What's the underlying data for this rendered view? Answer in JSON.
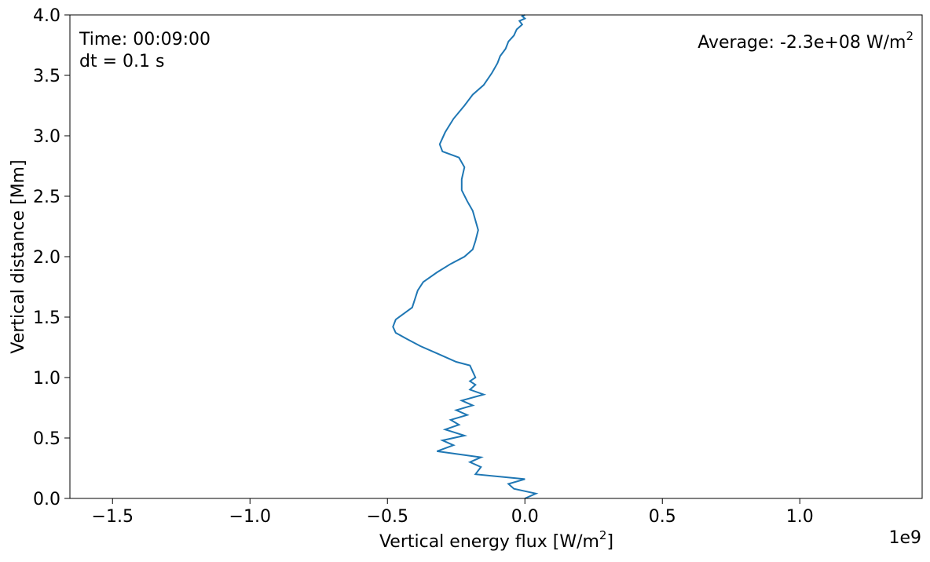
{
  "chart_data": {
    "type": "line",
    "title": "",
    "xlabel": "Vertical energy flux [W/m",
    "xlabel_sup": "2",
    "xlabel_tail": "]",
    "ylabel": "Vertical distance [Mm]",
    "x_offset_label": "1e9",
    "x_scale": 1000000000,
    "xlim": [
      -1655000000.0,
      1445000000.0
    ],
    "ylim": [
      0.0,
      4.0
    ],
    "grid": false,
    "legend": "none",
    "x_ticks": [
      -1500000000.0,
      -1000000000.0,
      -500000000.0,
      0.0,
      500000000.0,
      1000000000.0
    ],
    "x_tick_labels": [
      "−1.5",
      "−1.0",
      "−0.5",
      "0.0",
      "0.5",
      "1.0"
    ],
    "y_ticks": [
      0.0,
      0.5,
      1.0,
      1.5,
      2.0,
      2.5,
      3.0,
      3.5,
      4.0
    ],
    "y_tick_labels": [
      "0.0",
      "0.5",
      "1.0",
      "1.5",
      "2.0",
      "2.5",
      "3.0",
      "3.5",
      "4.0"
    ],
    "annotations": {
      "time": "Time: 00:09:00",
      "dt": "dt = 0.1 s",
      "average": "Average: -2.3e+08 W/m",
      "average_sup": "2"
    },
    "colors": {
      "line": "#1f77b4",
      "axes": "#000000"
    },
    "series": [
      {
        "x": [
          0.0,
          40000000.0,
          -40000000.0,
          -60000000.0,
          0.0,
          -180000000.0,
          -160000000.0,
          -200000000.0,
          -160000000.0,
          -320000000.0,
          -260000000.0,
          -300000000.0,
          -220000000.0,
          -290000000.0,
          -240000000.0,
          -270000000.0,
          -210000000.0,
          -250000000.0,
          -190000000.0,
          -230000000.0,
          -150000000.0,
          -200000000.0,
          -180000000.0,
          -200000000.0,
          -180000000.0,
          -190000000.0,
          -200000000.0,
          -250000000.0,
          -320000000.0,
          -380000000.0,
          -430000000.0,
          -470000000.0,
          -480000000.0,
          -470000000.0,
          -440000000.0,
          -410000000.0,
          -400000000.0,
          -390000000.0,
          -370000000.0,
          -320000000.0,
          -270000000.0,
          -220000000.0,
          -190000000.0,
          -180000000.0,
          -170000000.0,
          -180000000.0,
          -190000000.0,
          -210000000.0,
          -230000000.0,
          -230000000.0,
          -220000000.0,
          -240000000.0,
          -300000000.0,
          -310000000.0,
          -290000000.0,
          -260000000.0,
          -220000000.0,
          -190000000.0,
          -150000000.0,
          -120000000.0,
          -100000000.0,
          -90000000.0,
          -70000000.0,
          -60000000.0,
          -40000000.0,
          -30000000.0,
          -10000000.0,
          -20000000.0,
          0.0,
          -10000000.0,
          0.0
        ],
        "y": [
          0.0,
          0.04,
          0.08,
          0.12,
          0.16,
          0.2,
          0.26,
          0.3,
          0.34,
          0.39,
          0.44,
          0.48,
          0.52,
          0.57,
          0.61,
          0.65,
          0.69,
          0.73,
          0.77,
          0.81,
          0.86,
          0.9,
          0.94,
          0.97,
          1.0,
          1.05,
          1.1,
          1.13,
          1.2,
          1.26,
          1.32,
          1.37,
          1.42,
          1.48,
          1.53,
          1.58,
          1.65,
          1.72,
          1.79,
          1.87,
          1.94,
          2.0,
          2.06,
          2.13,
          2.22,
          2.3,
          2.38,
          2.46,
          2.55,
          2.64,
          2.74,
          2.82,
          2.87,
          2.93,
          3.03,
          3.14,
          3.25,
          3.34,
          3.42,
          3.52,
          3.6,
          3.66,
          3.72,
          3.78,
          3.83,
          3.88,
          3.92,
          3.95,
          3.97,
          3.99,
          4.0
        ]
      }
    ]
  }
}
